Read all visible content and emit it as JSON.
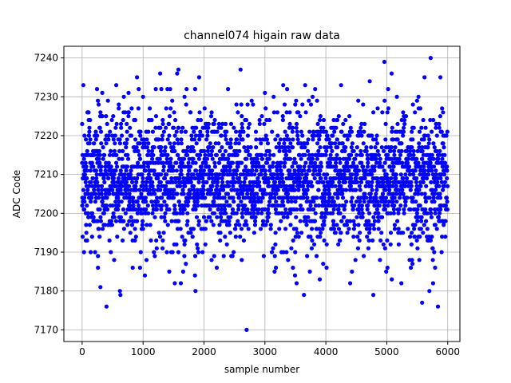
{
  "chart_data": {
    "type": "scatter",
    "title": "channel074 higain raw data",
    "xlabel": "sample number",
    "ylabel": "ADC Code",
    "xlim": [
      -300,
      6200
    ],
    "ylim": [
      7167,
      7243
    ],
    "xticks": [
      0,
      1000,
      2000,
      3000,
      4000,
      5000,
      6000
    ],
    "yticks": [
      7170,
      7180,
      7190,
      7200,
      7210,
      7220,
      7230,
      7240
    ],
    "grid": true,
    "marker_color": "#0000ff",
    "marker": "filled-circle",
    "n_samples": 6000,
    "distribution": {
      "center": 7209,
      "spread_sd": 8.5,
      "min": 7170,
      "max": 7240
    },
    "series": [
      {
        "x": [
          0,
          20,
          30,
          60,
          100,
          140,
          260,
          300,
          330,
          400,
          560,
          620,
          680,
          900,
          950,
          1000,
          1030,
          1280,
          1300,
          1430,
          1520,
          1560,
          1580,
          1620,
          1680,
          1860,
          1920,
          2600,
          2620,
          2700,
          3000,
          3300,
          3380,
          3460,
          3520,
          3640,
          3660,
          3900,
          4250,
          4400,
          4720,
          4780,
          4960,
          4990,
          5080,
          5240,
          5520,
          5580,
          5620,
          5700,
          5720,
          5760,
          5840,
          5880,
          5900
        ],
        "y": [
          7213,
          7233,
          7190,
          7193,
          7226,
          7190,
          7186,
          7181,
          7231,
          7176,
          7233,
          7180,
          7226,
          7235,
          7186,
          7230,
          7184,
          7236,
          7232,
          7185,
          7182,
          7236,
          7237,
          7182,
          7230,
          7180,
          7235,
          7237,
          7188,
          7170,
          7231,
          7233,
          7188,
          7186,
          7182,
          7179,
          7233,
          7183,
          7233,
          7182,
          7234,
          7179,
          7239,
          7185,
          7236,
          7182,
          7230,
          7177,
          7235,
          7180,
          7240,
          7182,
          7176,
          7235,
          7190
        ]
      }
    ]
  }
}
